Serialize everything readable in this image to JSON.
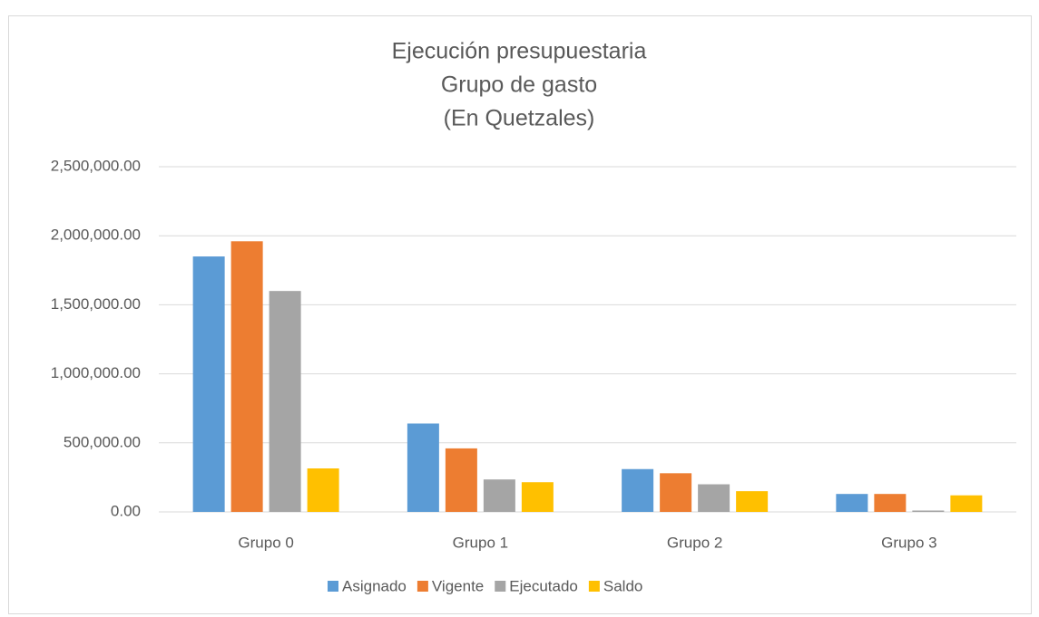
{
  "chart_data": {
    "type": "bar",
    "title": [
      "Ejecución presupuestaria",
      "Grupo de gasto",
      "(En Quetzales)"
    ],
    "categories": [
      "Grupo 0",
      "Grupo 1",
      "Grupo 2",
      "Grupo 3"
    ],
    "series": [
      {
        "name": "Asignado",
        "color": "#5b9bd5",
        "values": [
          1850000,
          640000,
          310000,
          130000
        ]
      },
      {
        "name": "Vigente",
        "color": "#ed7d31",
        "values": [
          1960000,
          460000,
          280000,
          130000
        ]
      },
      {
        "name": "Ejecutado",
        "color": "#a5a5a5",
        "values": [
          1600000,
          235000,
          200000,
          10000
        ]
      },
      {
        "name": "Saldo",
        "color": "#ffc000",
        "values": [
          315000,
          215000,
          150000,
          120000
        ]
      }
    ],
    "ylim": [
      0,
      2500000
    ],
    "yticks": [
      {
        "value": 0,
        "label": "0.00"
      },
      {
        "value": 500000,
        "label": "500,000.00"
      },
      {
        "value": 1000000,
        "label": "1,000,000.00"
      },
      {
        "value": 1500000,
        "label": "1,500,000.00"
      },
      {
        "value": 2000000,
        "label": "2,000,000.00"
      },
      {
        "value": 2500000,
        "label": "2,500,000.00"
      }
    ],
    "grid": true,
    "legend": "bottom"
  }
}
